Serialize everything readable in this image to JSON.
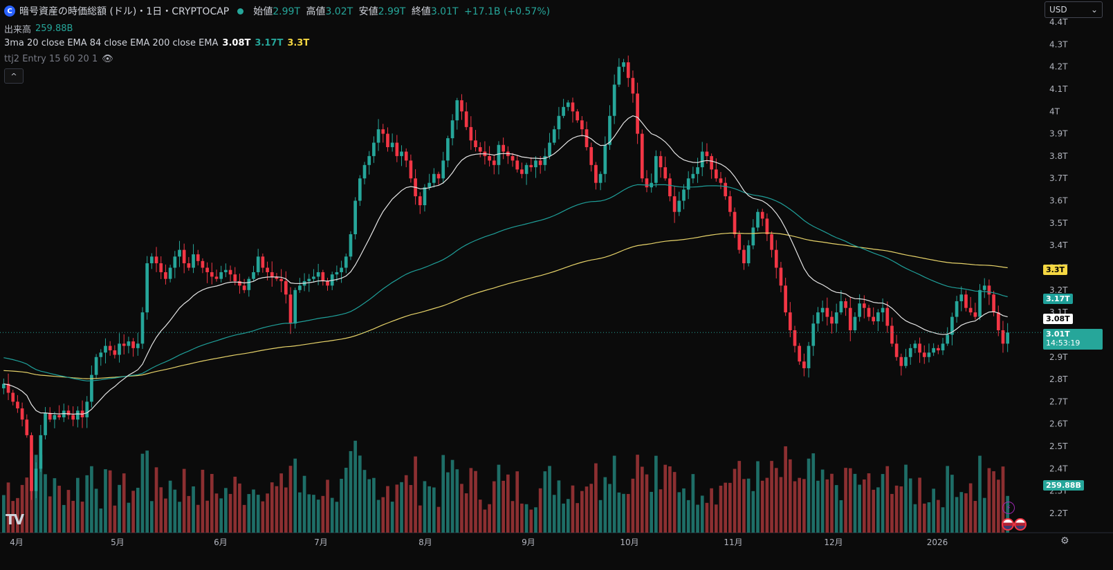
{
  "header": {
    "logo_letter": "C",
    "title": "暗号資産の時価総額 (ドル)・1日・CRYPTOCAP",
    "ohlc": [
      {
        "key": "始値",
        "value": "2.99T"
      },
      {
        "key": "高値",
        "value": "3.02T"
      },
      {
        "key": "安値",
        "value": "2.99T"
      },
      {
        "key": "終値",
        "value": "3.01T"
      }
    ],
    "change": "+17.1B (+0.57%)"
  },
  "volume_legend": {
    "label": "出来高",
    "value": "259.88B"
  },
  "ema_legend": {
    "label": "3ma 20 close EMA 84 close EMA 200 close EMA",
    "v1": "3.08T",
    "v2": "3.17T",
    "v3": "3.3T"
  },
  "entry_legend": {
    "label": "ttj2 Entry 15 60 20 1",
    "eye_icon": "👁"
  },
  "collapse_label": "^",
  "currency": {
    "value": "USD",
    "chevron": "⌄"
  },
  "tv_logo": "TV",
  "bolt_icon": "⚡",
  "gear_icon": "⚙",
  "price_labels": {
    "ema200": "3.3T",
    "ema84": "3.17T",
    "ema20": "3.08T",
    "last": "3.01T",
    "countdown": "14:53:19",
    "volume": "259.88B"
  },
  "colors": {
    "up": "#26a69a",
    "down": "#f23645",
    "ema20": "#e6e6e6",
    "ema84": "#1fa09a",
    "ema200": "#e8d46a",
    "vol_up": "#1e6e67",
    "vol_down": "#8c2f31"
  },
  "chart_data": {
    "type": "candlestick",
    "y_ticks": [
      "4.4T",
      "4.3T",
      "4.2T",
      "4.1T",
      "4T",
      "3.9T",
      "3.8T",
      "3.7T",
      "3.6T",
      "3.5T",
      "3.4T",
      "3.3T",
      "3.2T",
      "3.1T",
      "3T",
      "2.9T",
      "2.8T",
      "2.7T",
      "2.6T",
      "2.5T",
      "2.4T",
      "2.3T",
      "2.2T"
    ],
    "y_tick_values": [
      4.4,
      4.3,
      4.2,
      4.1,
      4.0,
      3.9,
      3.8,
      3.7,
      3.6,
      3.5,
      3.4,
      3.3,
      3.2,
      3.1,
      3.0,
      2.9,
      2.8,
      2.7,
      2.6,
      2.5,
      2.4,
      2.3,
      2.2
    ],
    "x_labels": [
      "4月",
      "5月",
      "6月",
      "7月",
      "8月",
      "9月",
      "10月",
      "11月",
      "12月",
      "2026"
    ],
    "close_series": [
      2.78,
      2.74,
      2.7,
      2.67,
      2.62,
      2.55,
      2.3,
      2.4,
      2.55,
      2.65,
      2.62,
      2.64,
      2.63,
      2.66,
      2.64,
      2.62,
      2.66,
      2.63,
      2.7,
      2.82,
      2.9,
      2.92,
      2.95,
      2.93,
      2.91,
      2.96,
      2.95,
      2.97,
      2.94,
      2.96,
      3.1,
      3.32,
      3.35,
      3.32,
      3.28,
      3.25,
      3.3,
      3.35,
      3.38,
      3.32,
      3.3,
      3.36,
      3.33,
      3.3,
      3.28,
      3.26,
      3.25,
      3.28,
      3.29,
      3.27,
      3.24,
      3.22,
      3.2,
      3.25,
      3.28,
      3.35,
      3.3,
      3.28,
      3.26,
      3.25,
      3.24,
      3.18,
      3.05,
      3.2,
      3.22,
      3.24,
      3.25,
      3.26,
      3.28,
      3.24,
      3.22,
      3.27,
      3.28,
      3.3,
      3.35,
      3.45,
      3.6,
      3.7,
      3.76,
      3.8,
      3.86,
      3.92,
      3.9,
      3.84,
      3.86,
      3.8,
      3.82,
      3.78,
      3.7,
      3.62,
      3.58,
      3.66,
      3.68,
      3.72,
      3.7,
      3.78,
      3.88,
      3.96,
      4.05,
      4.0,
      3.93,
      3.87,
      3.84,
      3.82,
      3.8,
      3.78,
      3.76,
      3.85,
      3.82,
      3.8,
      3.78,
      3.74,
      3.72,
      3.76,
      3.75,
      3.78,
      3.76,
      3.8,
      3.86,
      3.92,
      3.98,
      4.02,
      4.04,
      4.0,
      3.96,
      3.92,
      3.84,
      3.76,
      3.68,
      3.72,
      3.85,
      3.98,
      4.12,
      4.2,
      4.22,
      4.15,
      4.08,
      3.9,
      3.7,
      3.66,
      3.68,
      3.8,
      3.75,
      3.7,
      3.62,
      3.55,
      3.6,
      3.65,
      3.7,
      3.72,
      3.75,
      3.82,
      3.8,
      3.74,
      3.7,
      3.68,
      3.62,
      3.55,
      3.45,
      3.38,
      3.32,
      3.4,
      3.48,
      3.55,
      3.52,
      3.45,
      3.38,
      3.3,
      3.22,
      3.1,
      3.02,
      2.95,
      2.88,
      2.85,
      2.95,
      3.05,
      3.1,
      3.12,
      3.08,
      3.05,
      3.1,
      3.15,
      3.12,
      3.02,
      3.08,
      3.14,
      3.12,
      3.08,
      3.06,
      3.1,
      3.12,
      3.04,
      2.96,
      2.9,
      2.86,
      2.9,
      2.94,
      2.96,
      2.92,
      2.9,
      2.92,
      2.94,
      2.93,
      2.96,
      3.0,
      3.08,
      3.15,
      3.18,
      3.12,
      3.1,
      3.08,
      3.2,
      3.22,
      3.18,
      3.1,
      3.02,
      2.96,
      3.01
    ],
    "ema20_end": 3.08,
    "ema84_end": 3.17,
    "ema200_end": 3.3,
    "last_price": 3.01,
    "volume_last": "259.88B"
  }
}
